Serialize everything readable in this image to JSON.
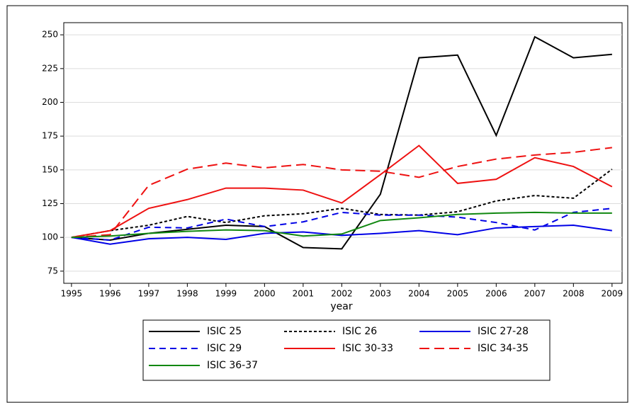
{
  "chart_data": {
    "type": "line",
    "x_label": "year",
    "x": [
      1995,
      1996,
      1997,
      1998,
      1999,
      2000,
      2001,
      2002,
      2003,
      2004,
      2005,
      2006,
      2007,
      2008,
      2009
    ],
    "xlim": [
      1994.8,
      2009.26
    ],
    "xticks": [
      1995,
      1996,
      1997,
      1998,
      1999,
      2000,
      2001,
      2002,
      2003,
      2004,
      2005,
      2006,
      2007,
      2008,
      2009
    ],
    "ylim": [
      66,
      259
    ],
    "yticks": [
      75,
      100,
      125,
      150,
      175,
      200,
      225,
      250
    ],
    "grid": true,
    "legend": "bottom",
    "series": [
      {
        "name": "ISIC 25",
        "color": "#000000",
        "style": "solid",
        "values": [
          100,
          98,
          103,
          106,
          109,
          108,
          92.5,
          91.5,
          132,
          233,
          235,
          175.5,
          248.5,
          233,
          235.5
        ]
      },
      {
        "name": "ISIC 26",
        "color": "#000000",
        "style": "dotted",
        "values": [
          100,
          105,
          109,
          115.5,
          111,
          116,
          117.5,
          121.5,
          117,
          116.5,
          119,
          127,
          131,
          129,
          150.5
        ]
      },
      {
        "name": "ISIC 27-28",
        "color": "#0000e6",
        "style": "solid",
        "values": [
          100,
          95,
          99,
          100,
          98.5,
          103,
          104,
          101.5,
          103,
          105,
          102,
          107,
          108,
          109,
          105
        ]
      },
      {
        "name": "ISIC 29",
        "color": "#0000e6",
        "style": "dashed",
        "values": [
          100,
          98,
          107.5,
          107,
          113.5,
          108,
          111.5,
          118.5,
          116.5,
          116.5,
          115,
          111,
          105.5,
          118.5,
          121.5
        ]
      },
      {
        "name": "ISIC 30-33",
        "color": "#ee1111",
        "style": "solid",
        "values": [
          100,
          105,
          121.5,
          128,
          136.5,
          136.5,
          135,
          125.5,
          146.5,
          168,
          140,
          143,
          159,
          152.5,
          137.5
        ]
      },
      {
        "name": "ISIC 34-35",
        "color": "#ee1111",
        "style": "longdash",
        "values": [
          100,
          102,
          138.5,
          150.5,
          155,
          151.5,
          154,
          150,
          149,
          144.5,
          152.5,
          158,
          161,
          163,
          166.5
        ]
      },
      {
        "name": "ISIC 36-37",
        "color": "#118811",
        "style": "solid",
        "values": [
          100,
          101,
          103,
          104.5,
          105.5,
          105,
          101,
          102.5,
          112.5,
          114.5,
          117,
          118,
          118.5,
          118,
          118
        ]
      }
    ]
  }
}
